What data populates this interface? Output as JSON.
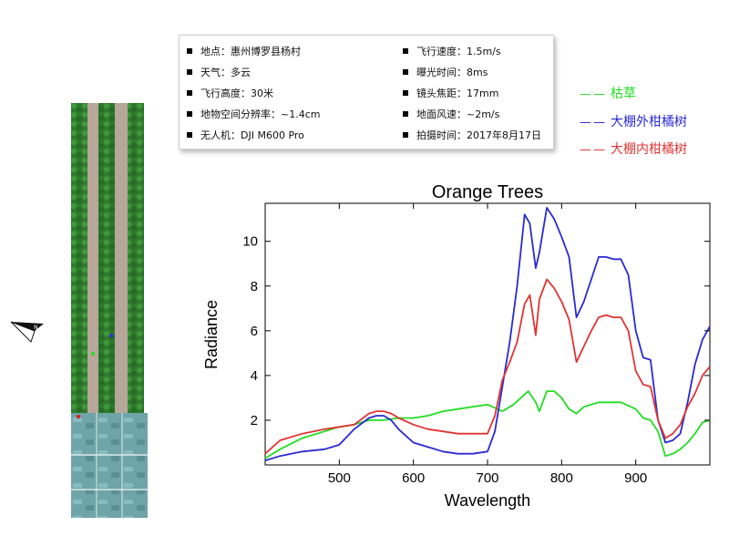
{
  "info": {
    "left": [
      "地点：惠州博罗县杨村",
      "天气：多云",
      "飞行高度：30米",
      "地物空间分辨率：~1.4cm",
      "无人机：DJI M600 Pro"
    ],
    "right": [
      "飞行速度：1.5m/s",
      "曝光时间：8ms",
      "镜头焦距：17mm",
      "地面风速：~2m/s",
      "拍摄时间：2017年8月17日"
    ]
  },
  "legend": [
    {
      "label": "枯草",
      "color": "#22dd22"
    },
    {
      "label": "大棚外柑橘树",
      "color": "#2a2ad2"
    },
    {
      "label": "大棚内柑橘树",
      "color": "#e03434"
    }
  ],
  "colors": {
    "green": "#22dd22",
    "blue": "#2a2ad2",
    "red": "#e03434"
  },
  "chart_data": {
    "type": "line",
    "title": "Orange Trees",
    "xlabel": "Wavelength",
    "ylabel": "Radiance",
    "xlim": [
      400,
      1000
    ],
    "ylim": [
      0,
      11.7
    ],
    "xticks": [
      500,
      600,
      700,
      800,
      900
    ],
    "yticks": [
      2,
      4,
      6,
      8,
      10
    ],
    "grid": false,
    "series": [
      {
        "name": "枯草",
        "color": "#22dd22",
        "x": [
          400,
          420,
          450,
          480,
          500,
          520,
          540,
          560,
          580,
          600,
          620,
          640,
          660,
          680,
          700,
          720,
          735,
          745,
          755,
          765,
          770,
          780,
          790,
          800,
          810,
          820,
          830,
          840,
          850,
          860,
          880,
          900,
          910,
          920,
          930,
          940,
          950,
          960,
          970,
          980,
          990,
          1000
        ],
        "y": [
          0.3,
          0.7,
          1.2,
          1.5,
          1.7,
          1.8,
          2.0,
          2.0,
          2.1,
          2.1,
          2.2,
          2.4,
          2.5,
          2.6,
          2.7,
          2.4,
          2.7,
          3.0,
          3.3,
          2.8,
          2.4,
          3.3,
          3.3,
          3.0,
          2.5,
          2.3,
          2.6,
          2.7,
          2.8,
          2.8,
          2.8,
          2.5,
          2.1,
          2.0,
          1.5,
          0.4,
          0.5,
          0.7,
          1.0,
          1.4,
          1.9,
          2.0
        ]
      },
      {
        "name": "大棚外柑橘树",
        "color": "#2a2ad2",
        "x": [
          400,
          420,
          450,
          480,
          500,
          520,
          540,
          550,
          560,
          570,
          580,
          600,
          620,
          640,
          660,
          680,
          700,
          710,
          720,
          730,
          740,
          750,
          757,
          765,
          770,
          780,
          790,
          800,
          810,
          820,
          830,
          840,
          850,
          860,
          870,
          880,
          890,
          900,
          910,
          920,
          930,
          940,
          950,
          960,
          970,
          980,
          990,
          1000
        ],
        "y": [
          0.2,
          0.4,
          0.6,
          0.7,
          0.9,
          1.6,
          2.1,
          2.2,
          2.2,
          2.0,
          1.6,
          1.0,
          0.8,
          0.6,
          0.5,
          0.5,
          0.6,
          1.5,
          3.5,
          5.5,
          8.0,
          11.2,
          10.8,
          8.8,
          9.5,
          11.5,
          11.0,
          10.2,
          9.3,
          6.6,
          7.3,
          8.3,
          9.3,
          9.3,
          9.2,
          9.2,
          8.5,
          6.0,
          4.8,
          4.7,
          2.0,
          1.0,
          1.1,
          1.4,
          2.8,
          4.5,
          5.6,
          6.2
        ]
      },
      {
        "name": "大棚内柑橘树",
        "color": "#e03434",
        "x": [
          400,
          420,
          450,
          480,
          500,
          520,
          540,
          550,
          560,
          570,
          580,
          600,
          620,
          640,
          660,
          680,
          700,
          710,
          720,
          730,
          740,
          750,
          757,
          765,
          770,
          780,
          790,
          800,
          810,
          820,
          830,
          840,
          850,
          860,
          870,
          880,
          890,
          900,
          910,
          920,
          930,
          940,
          950,
          960,
          970,
          980,
          990,
          1000
        ],
        "y": [
          0.5,
          1.1,
          1.4,
          1.6,
          1.7,
          1.8,
          2.3,
          2.4,
          2.4,
          2.3,
          2.1,
          1.8,
          1.6,
          1.5,
          1.4,
          1.4,
          1.4,
          2.2,
          3.8,
          4.6,
          5.5,
          7.2,
          7.6,
          5.8,
          7.4,
          8.3,
          7.9,
          7.3,
          6.5,
          4.6,
          5.3,
          6.0,
          6.6,
          6.7,
          6.6,
          6.6,
          6.0,
          4.2,
          3.6,
          3.5,
          2.0,
          1.2,
          1.4,
          1.8,
          2.6,
          3.2,
          4.0,
          4.4
        ]
      }
    ]
  }
}
